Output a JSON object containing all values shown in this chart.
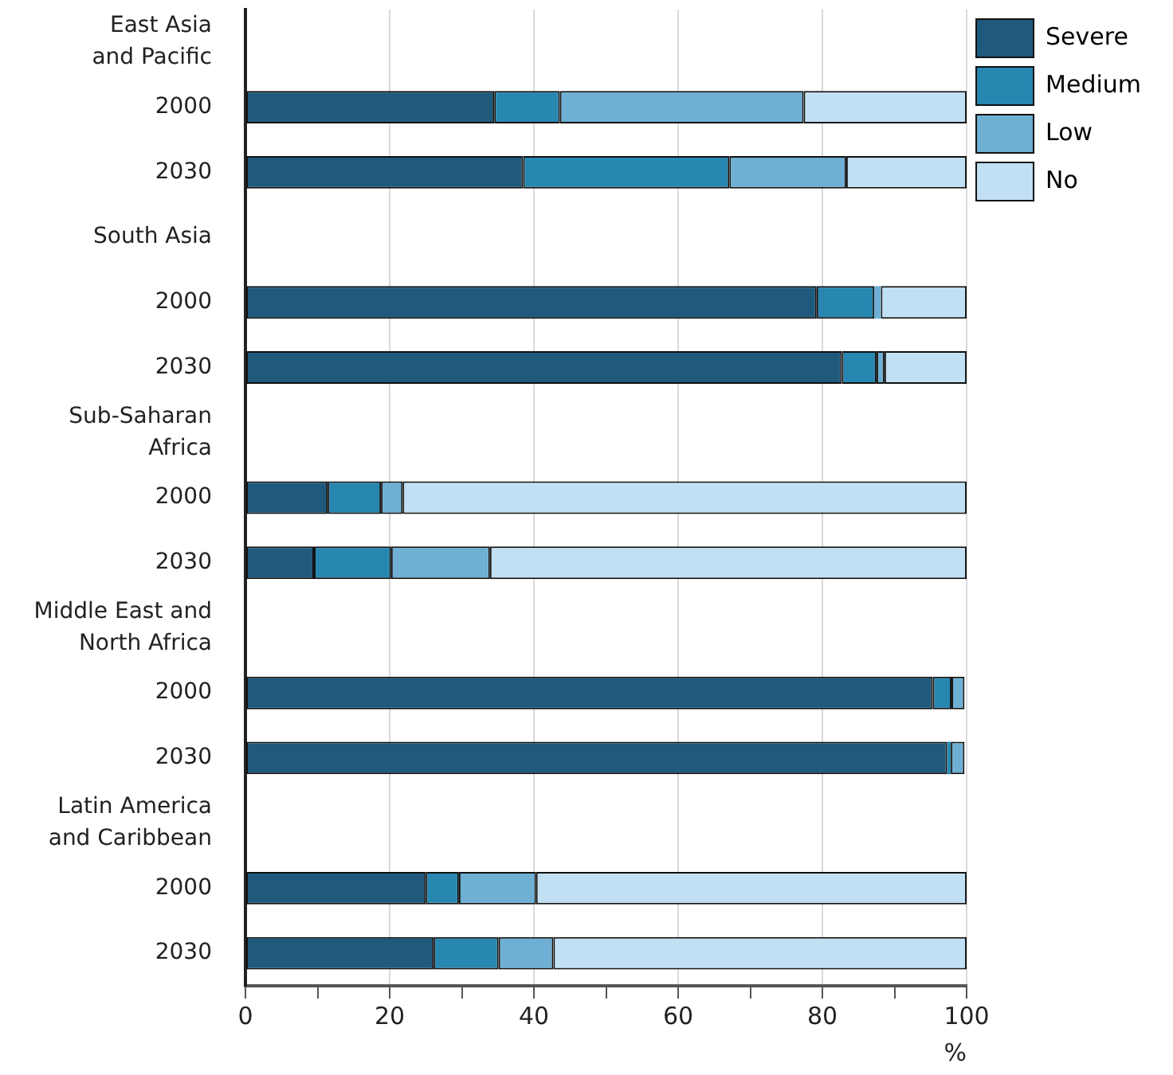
{
  "chart_data": {
    "type": "bar",
    "orientation": "horizontal",
    "stacked": true,
    "xlabel": "%",
    "categories": [
      "East Asia\nand Pacific",
      "2000",
      "2030",
      "South Asia",
      "2000",
      "2030",
      "Sub-Saharan\nAfrica",
      "2000",
      "2030",
      "Middle East and\nNorth Africa",
      "2000",
      "2030",
      "Latin America\nand Caribbean",
      "2000",
      "2030"
    ],
    "series": [
      {
        "name": "Severe",
        "color": "#1f5a7d",
        "values": [
          null,
          34.5,
          38.5,
          null,
          79.2,
          82.7,
          null,
          11.4,
          9.5,
          null,
          95.3,
          97.3,
          null,
          25.0,
          26.1
        ]
      },
      {
        "name": "Medium",
        "color": "#2887b0",
        "values": [
          null,
          9.1,
          28.6,
          null,
          8.0,
          4.8,
          null,
          7.4,
          10.7,
          null,
          2.6,
          0.5,
          null,
          4.6,
          9.0
        ]
      },
      {
        "name": "Low",
        "color": "#6eafd3",
        "values": [
          null,
          33.8,
          16.2,
          null,
          0.9,
          1.1,
          null,
          3.0,
          13.7,
          null,
          1.8,
          1.9,
          null,
          10.7,
          7.6
        ]
      },
      {
        "name": "No",
        "color": "#c2e0f3",
        "values": [
          null,
          22.6,
          16.7,
          null,
          11.9,
          11.4,
          null,
          78.2,
          66.1,
          null,
          null,
          null,
          null,
          59.7,
          57.3
        ]
      }
    ],
    "xlim": [
      0,
      100
    ],
    "xticks": [
      0,
      {
        "value": 10,
        "label": null
      },
      20,
      {
        "value": 30,
        "label": null
      },
      40,
      {
        "value": 50,
        "label": null
      },
      60,
      {
        "value": 70,
        "label": null
      },
      80,
      {
        "value": 90,
        "label": null
      },
      100
    ],
    "grid": "x",
    "legend": "top right"
  }
}
